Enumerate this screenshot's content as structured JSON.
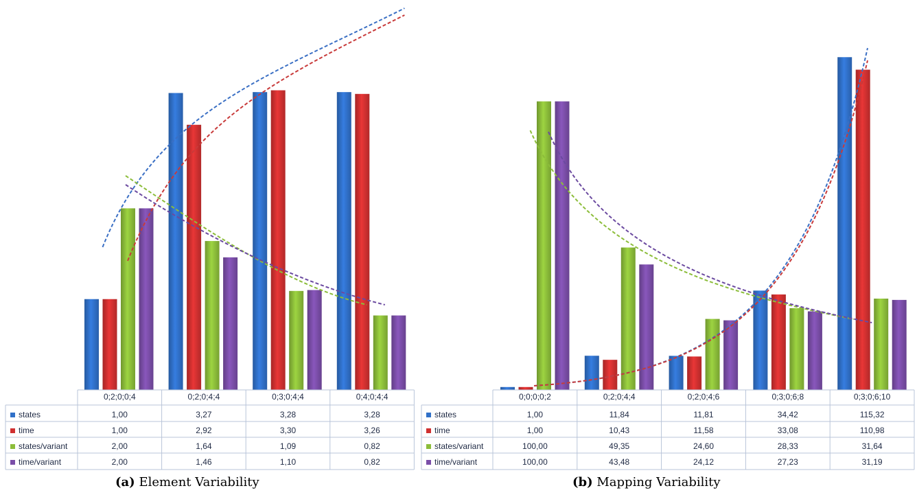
{
  "captions": [
    {
      "label": "(a)",
      "text": "Element Variability"
    },
    {
      "label": "(b)",
      "text": "Mapping Variability"
    }
  ],
  "colors": {
    "states": "#3070c8",
    "time": "#d03030",
    "states/variant": "#8cbd3a",
    "time/variant": "#7a4ea8",
    "trend_states": "#3a6fc4",
    "trend_time": "#c83a3a",
    "trend_states_variant": "#8cbd3a",
    "trend_time_variant": "#6b4aa0",
    "grid": "#b8c4d8"
  },
  "chart_data": [
    {
      "type": "bar",
      "title": "",
      "categories": [
        "0;2;0;0;4",
        "0;2;0;4;4",
        "0;3;0;4;4",
        "0;4;0;4;4"
      ],
      "series": [
        {
          "name": "states",
          "values": [
            1.0,
            3.27,
            3.28,
            3.28
          ],
          "labels": [
            "1,00",
            "3,27",
            "3,28",
            "3,28"
          ]
        },
        {
          "name": "time",
          "values": [
            1.0,
            2.92,
            3.3,
            3.26
          ],
          "labels": [
            "1,00",
            "2,92",
            "3,30",
            "3,26"
          ]
        },
        {
          "name": "states/variant",
          "values": [
            2.0,
            1.64,
            1.09,
            0.82
          ],
          "labels": [
            "2,00",
            "1,64",
            "1,09",
            "0,82"
          ]
        },
        {
          "name": "time/variant",
          "values": [
            2.0,
            1.46,
            1.1,
            0.82
          ],
          "labels": [
            "2,00",
            "1,46",
            "1,10",
            "0,82"
          ]
        }
      ],
      "ylim": [
        0,
        3.75
      ],
      "trendlines": "dashed, one per series",
      "legend": "data table below chart"
    },
    {
      "type": "bar",
      "title": "",
      "categories": [
        "0;0;0;0;2",
        "0;2;0;4;4",
        "0;2;0;4;6",
        "0;3;0;6;8",
        "0;3;0;6;10"
      ],
      "series": [
        {
          "name": "states",
          "values": [
            1.0,
            11.84,
            11.81,
            34.42,
            115.32
          ],
          "labels": [
            "1,00",
            "11,84",
            "11,81",
            "34,42",
            "115,32"
          ]
        },
        {
          "name": "time",
          "values": [
            1.0,
            10.43,
            11.58,
            33.08,
            110.98
          ],
          "labels": [
            "1,00",
            "10,43",
            "11,58",
            "33,08",
            "110,98"
          ]
        },
        {
          "name": "states/variant",
          "values": [
            100.0,
            49.35,
            24.6,
            28.33,
            31.64
          ],
          "labels": [
            "100,00",
            "49,35",
            "24,60",
            "28,33",
            "31,64"
          ]
        },
        {
          "name": "time/variant",
          "values": [
            100.0,
            43.48,
            24.12,
            27.23,
            31.19
          ],
          "labels": [
            "100,00",
            "43,48",
            "24,12",
            "27,23",
            "31,19"
          ]
        }
      ],
      "ylim": [
        0,
        118
      ],
      "trendlines": "dashed, one per series",
      "legend": "data table below chart"
    }
  ]
}
